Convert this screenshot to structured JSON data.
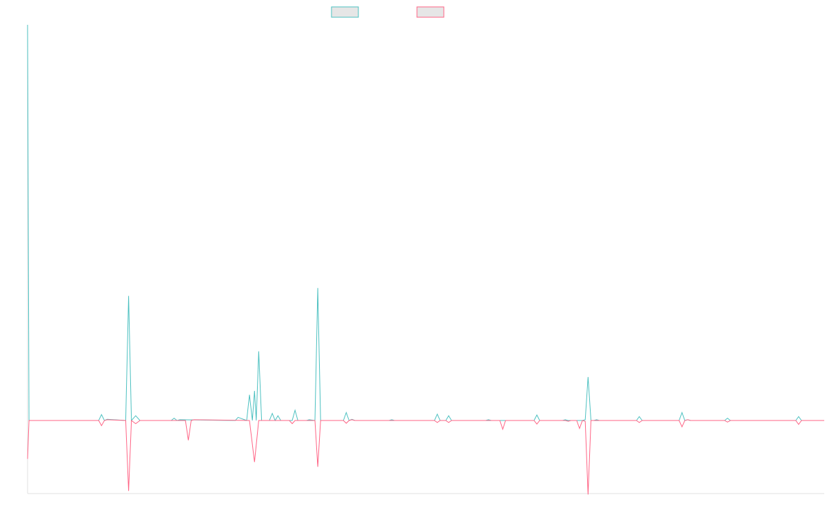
{
  "chart_data": {
    "type": "line",
    "title": "",
    "xlabel": "",
    "ylabel": "",
    "grid": false,
    "legend": "top-center",
    "ylim": [
      -2.0,
      10.0
    ],
    "series": [
      {
        "color": "#4bc0c0",
        "fill": "#e6e6e6",
        "points": [
          [
            0,
            10.0
          ],
          [
            0.4,
            0
          ],
          [
            20,
            0
          ],
          [
            20.8,
            0.15
          ],
          [
            21.6,
            0
          ],
          [
            22.4,
            0.03
          ],
          [
            27.6,
            0
          ],
          [
            28.4,
            3.15
          ],
          [
            29.2,
            0
          ],
          [
            30.4,
            0.12
          ],
          [
            31.6,
            0
          ],
          [
            40.4,
            0
          ],
          [
            41.2,
            0.06
          ],
          [
            42,
            0
          ],
          [
            42.8,
            0.02
          ],
          [
            58.4,
            0
          ],
          [
            59.2,
            0.08
          ],
          [
            61.6,
            0
          ],
          [
            62.4,
            0.65
          ],
          [
            63.2,
            0
          ],
          [
            63.8,
            0.75
          ],
          [
            64.3,
            0
          ],
          [
            65,
            1.75
          ],
          [
            65.8,
            0
          ],
          [
            68,
            0
          ],
          [
            68.8,
            0.18
          ],
          [
            69.6,
            0
          ],
          [
            70.4,
            0.12
          ],
          [
            71.2,
            0
          ],
          [
            74.4,
            0
          ],
          [
            75.2,
            0.26
          ],
          [
            76,
            0
          ],
          [
            78.4,
            0
          ],
          [
            79.2,
            0.02
          ],
          [
            80.8,
            0
          ],
          [
            81.6,
            3.35
          ],
          [
            82.4,
            0
          ],
          [
            84,
            0
          ],
          [
            88.8,
            0
          ],
          [
            89.6,
            0.2
          ],
          [
            90.4,
            0
          ],
          [
            91.2,
            0.03
          ],
          [
            92,
            0
          ],
          [
            101.6,
            0
          ],
          [
            102.4,
            0.02
          ],
          [
            103.2,
            0
          ],
          [
            114.4,
            0
          ],
          [
            115.2,
            0.16
          ],
          [
            116,
            0
          ],
          [
            117.6,
            0
          ],
          [
            118.4,
            0.12
          ],
          [
            119.2,
            0
          ],
          [
            128.8,
            0
          ],
          [
            129.6,
            0.02
          ],
          [
            130.4,
            0
          ],
          [
            142.4,
            0
          ],
          [
            143.2,
            0.14
          ],
          [
            144,
            0
          ],
          [
            150.4,
            0
          ],
          [
            151.2,
            0.02
          ],
          [
            152,
            0
          ],
          [
            156,
            0
          ],
          [
            156.8,
            0.02
          ],
          [
            157.6,
            1.1
          ],
          [
            158.4,
            0
          ],
          [
            159.2,
            0
          ],
          [
            160,
            0.02
          ],
          [
            160.8,
            0
          ],
          [
            171.2,
            0
          ],
          [
            172,
            0.1
          ],
          [
            172.8,
            0
          ],
          [
            183.2,
            0
          ],
          [
            184,
            0.2
          ],
          [
            184.8,
            0
          ],
          [
            185.6,
            0.02
          ],
          [
            186.4,
            0
          ],
          [
            196,
            0
          ],
          [
            196.8,
            0.06
          ],
          [
            197.6,
            0
          ],
          [
            216,
            0
          ],
          [
            216.8,
            0.1
          ],
          [
            217.6,
            0
          ],
          [
            224,
            0
          ]
        ]
      },
      {
        "color": "#ff6384",
        "fill": "#e6e6e6",
        "points": [
          [
            0,
            -0.97
          ],
          [
            0.4,
            0
          ],
          [
            20,
            0
          ],
          [
            20.8,
            -0.13
          ],
          [
            21.6,
            0
          ],
          [
            22.4,
            0.02
          ],
          [
            27.6,
            0
          ],
          [
            28.4,
            -1.78
          ],
          [
            29.2,
            0
          ],
          [
            30.4,
            -0.08
          ],
          [
            31.6,
            0
          ],
          [
            44.4,
            0
          ],
          [
            45.2,
            -0.5
          ],
          [
            46,
            0
          ],
          [
            46.8,
            0.02
          ],
          [
            62.4,
            0
          ],
          [
            63.8,
            -1.05
          ],
          [
            65,
            0
          ],
          [
            73.6,
            0
          ],
          [
            74.4,
            -0.08
          ],
          [
            75.2,
            0
          ],
          [
            80.8,
            0
          ],
          [
            81.6,
            -1.17
          ],
          [
            82.4,
            0
          ],
          [
            84,
            0
          ],
          [
            88.8,
            0
          ],
          [
            89.6,
            -0.07
          ],
          [
            90.4,
            0
          ],
          [
            91.2,
            0.02
          ],
          [
            92,
            0
          ],
          [
            114.4,
            0
          ],
          [
            115.2,
            -0.05
          ],
          [
            116,
            0
          ],
          [
            117.6,
            0
          ],
          [
            118.4,
            -0.05
          ],
          [
            119.2,
            0
          ],
          [
            132.8,
            0
          ],
          [
            133.6,
            -0.22
          ],
          [
            134.4,
            0
          ],
          [
            142.4,
            0
          ],
          [
            143.2,
            -0.09
          ],
          [
            144,
            0
          ],
          [
            151.2,
            0
          ],
          [
            152,
            -0.02
          ],
          [
            152.8,
            0
          ],
          [
            154.4,
            0
          ],
          [
            155.2,
            -0.2
          ],
          [
            156,
            0
          ],
          [
            156.8,
            -0.02
          ],
          [
            157.6,
            -1.87
          ],
          [
            158.4,
            0
          ],
          [
            171.2,
            0
          ],
          [
            172,
            -0.05
          ],
          [
            172.8,
            0
          ],
          [
            183.2,
            0
          ],
          [
            184,
            -0.16
          ],
          [
            184.8,
            0
          ],
          [
            185.6,
            0.02
          ],
          [
            186.4,
            0
          ],
          [
            196,
            0
          ],
          [
            196.8,
            -0.04
          ],
          [
            197.6,
            0
          ],
          [
            216,
            0
          ],
          [
            216.8,
            -0.1
          ],
          [
            217.6,
            0
          ],
          [
            224,
            0
          ]
        ]
      }
    ]
  }
}
